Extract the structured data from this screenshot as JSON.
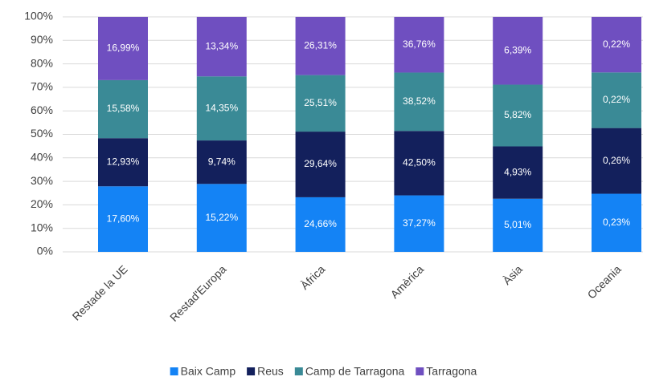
{
  "chart_data": {
    "type": "bar",
    "stacked": "percent",
    "categories": [
      "Restade la UE",
      "Restad'Europa",
      "Àfrica",
      "Amèrica",
      "Àsia",
      "Oceania"
    ],
    "series": [
      {
        "name": "Baix Camp",
        "color": "#1483f5",
        "values": [
          17.6,
          15.22,
          24.66,
          37.27,
          5.01,
          0.23
        ],
        "value_labels": [
          "17,60%",
          "15,22%",
          "24,66%",
          "37,27%",
          "5,01%",
          "0,23%"
        ]
      },
      {
        "name": "Reus",
        "color": "#13205c",
        "values": [
          12.93,
          9.74,
          29.64,
          42.5,
          4.93,
          0.26
        ],
        "value_labels": [
          "12,93%",
          "9,74%",
          "29,64%",
          "42,50%",
          "4,93%",
          "0,26%"
        ]
      },
      {
        "name": "Camp de Tarragona",
        "color": "#3a8a96",
        "values": [
          15.58,
          14.35,
          25.51,
          38.52,
          5.82,
          0.22
        ],
        "value_labels": [
          "15,58%",
          "14,35%",
          "25,51%",
          "38,52%",
          "5,82%",
          "0,22%"
        ]
      },
      {
        "name": "Tarragona",
        "color": "#6f4fc0",
        "values": [
          16.99,
          13.34,
          26.31,
          36.76,
          6.39,
          0.22
        ],
        "value_labels": [
          "16,99%",
          "13,34%",
          "26,31%",
          "36,76%",
          "6,39%",
          "0,22%"
        ]
      }
    ],
    "ylim": [
      0,
      100
    ],
    "yticks": [
      {
        "value": 0,
        "label": "0%"
      },
      {
        "value": 10,
        "label": "10%"
      },
      {
        "value": 20,
        "label": "20%"
      },
      {
        "value": 30,
        "label": "30%"
      },
      {
        "value": 40,
        "label": "40%"
      },
      {
        "value": 50,
        "label": "50%"
      },
      {
        "value": 60,
        "label": "60%"
      },
      {
        "value": 70,
        "label": "70%"
      },
      {
        "value": 80,
        "label": "80%"
      },
      {
        "value": 90,
        "label": "90%"
      },
      {
        "value": 100,
        "label": "100%"
      }
    ],
    "grid": true,
    "legend": "bottom"
  }
}
